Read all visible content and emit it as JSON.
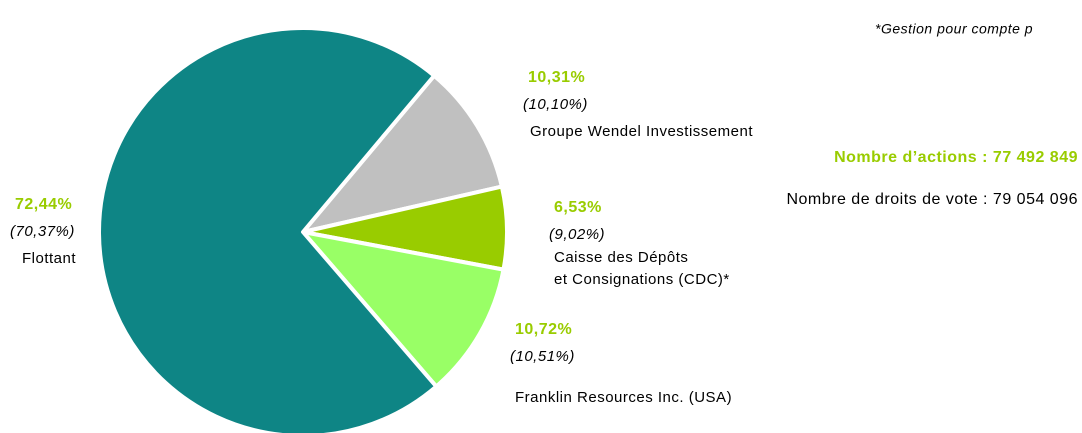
{
  "chart_data": {
    "type": "pie",
    "note": "*Gestion pour compte p",
    "annotations": [
      "Nombre d’actions : 77 492 849",
      "Nombre de droits de vote : 79 054 096"
    ],
    "categories": [
      "Flottant",
      "Groupe Wendel Investissement",
      [
        "Caisse des Dépôts",
        "et Consignations (CDC)*"
      ],
      "Franklin Resources Inc. (USA)"
    ],
    "series": [
      {
        "values": [
          72.44,
          10.31,
          6.53,
          10.72
        ],
        "value_labels": [
          "72,44%",
          "10,31%",
          "6,53%",
          "10,72%"
        ],
        "colors": [
          "#0e8585",
          "#c0c0c0",
          "#99cc00",
          "#99ff66"
        ]
      },
      {
        "values": [
          70.37,
          10.1,
          9.02,
          10.51
        ],
        "value_labels": [
          "(70,37%)",
          "(10,10%)",
          "(9,02%)",
          "(10,51%)"
        ]
      }
    ]
  }
}
